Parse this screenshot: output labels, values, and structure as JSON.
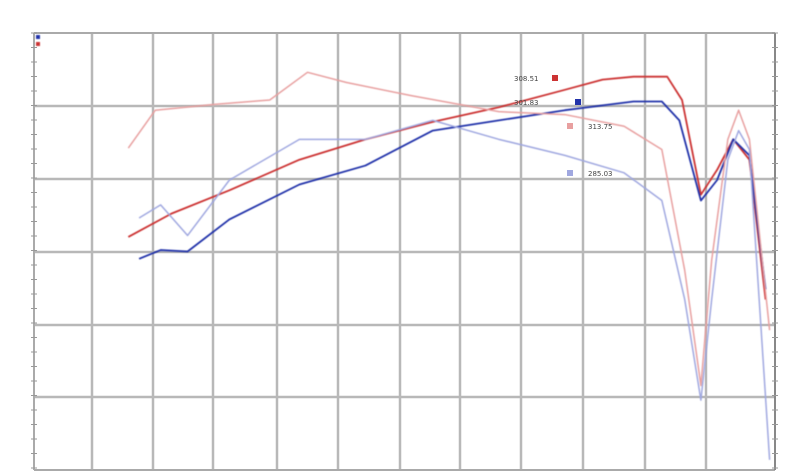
{
  "chart_data": {
    "type": "line",
    "title": "",
    "xlabel": "",
    "ylabel": "",
    "grid": true,
    "legend_position": "top-left",
    "xlim": [
      1000,
      6500
    ],
    "ylim": [
      0,
      300
    ],
    "series": [
      {
        "color": "#cc3333",
        "style": "solid",
        "x": [
          1700,
          2020,
          2450,
          2970,
          3460,
          3960,
          4450,
          4940,
          5220,
          5450,
          5700,
          5810,
          5950,
          6070,
          6190,
          6310,
          6430
        ],
        "y": [
          160,
          176,
          192,
          213,
          227,
          239,
          249,
          261,
          268,
          270,
          270,
          254,
          189,
          206,
          227,
          213,
          117
        ]
      },
      {
        "color": "#2233aa",
        "style": "solid",
        "x": [
          1780,
          1940,
          2140,
          2450,
          2970,
          3460,
          3960,
          4450,
          4940,
          5450,
          5660,
          5790,
          5950,
          6070,
          6190,
          6310,
          6430
        ],
        "y": [
          145,
          151,
          150,
          172,
          196,
          209,
          233,
          240,
          247,
          253,
          253,
          240,
          185,
          199,
          227,
          216,
          124
        ]
      },
      {
        "color": "#e8a0a0",
        "style": "light",
        "x": [
          1700,
          1900,
          2340,
          2750,
          3030,
          3320,
          3800,
          4450,
          4940,
          5380,
          5660,
          5830,
          5950,
          6030,
          6150,
          6230,
          6310,
          6460
        ],
        "y": [
          221,
          247,
          251,
          254,
          273,
          266,
          257,
          246,
          244,
          236,
          220,
          137,
          58,
          144,
          227,
          247,
          227,
          96
        ]
      },
      {
        "color": "#a0a8e0",
        "style": "light",
        "x": [
          1780,
          1940,
          2140,
          2450,
          2970,
          3460,
          3960,
          4450,
          4940,
          5380,
          5660,
          5830,
          5950,
          6030,
          6150,
          6230,
          6310,
          6460
        ],
        "y": [
          173,
          182,
          161,
          199,
          227,
          227,
          240,
          227,
          216,
          204,
          185,
          117,
          48,
          117,
          213,
          233,
          220,
          7
        ]
      }
    ],
    "annotations": [
      {
        "text": "308.51",
        "color": "#cc3333"
      },
      {
        "text": "301.83",
        "color": "#2233aa"
      },
      {
        "text": "313.75",
        "color": "#e8a0a0"
      },
      {
        "text": "285.03",
        "color": "#a0a8e0"
      }
    ]
  }
}
